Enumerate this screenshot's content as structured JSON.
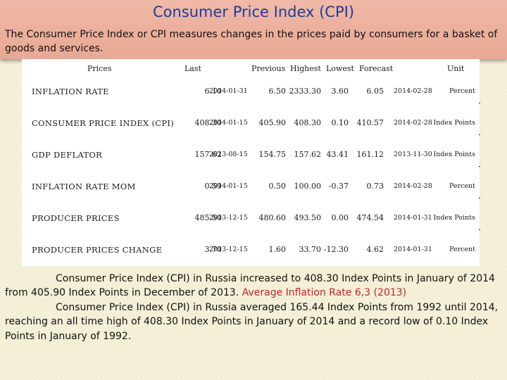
{
  "header": {
    "title": "Consumer Price Index (CPI)",
    "subtitle": "The Consumer Price Index or CPI measures changes in the prices paid by consumers for a basket of goods and services."
  },
  "table": {
    "columns": {
      "prices": "Prices",
      "last": "Last",
      "previous": "Previous",
      "highest": "Highest",
      "lowest": "Lowest",
      "forecast": "Forecast",
      "unit": "Unit"
    },
    "rows": [
      {
        "name": "INFLATION RATE",
        "last": "6.10",
        "ref": "2014-01-31",
        "previous": "6.50",
        "highest": "2333.30",
        "lowest": "3.60",
        "forecast": "6.05",
        "forecast_date": "2014-02-28",
        "unit": "Percent"
      },
      {
        "name": "CONSUMER PRICE INDEX (CPI)",
        "last": "408.30",
        "ref": "2014-01-15",
        "previous": "405.90",
        "highest": "408.30",
        "lowest": "0.10",
        "forecast": "410.57",
        "forecast_date": "2014-02-28",
        "unit": "Index Points"
      },
      {
        "name": "GDP DEFLATOR",
        "last": "157.62",
        "ref": "2013-08-15",
        "previous": "154.75",
        "highest": "157.62",
        "lowest": "43.41",
        "forecast": "161.12",
        "forecast_date": "2013-11-30",
        "unit": "Index Points"
      },
      {
        "name": "INFLATION RATE MOM",
        "last": "0.59",
        "ref": "2014-01-15",
        "previous": "0.50",
        "highest": "100.00",
        "lowest": "-0.37",
        "forecast": "0.73",
        "forecast_date": "2014-02-28",
        "unit": "Percent"
      },
      {
        "name": "PRODUCER PRICES",
        "last": "485.50",
        "ref": "2013-12-15",
        "previous": "480.60",
        "highest": "493.50",
        "lowest": "0.00",
        "forecast": "474.54",
        "forecast_date": "2014-01-31",
        "unit": "Index Points"
      },
      {
        "name": "PRODUCER PRICES CHANGE",
        "last": "3.70",
        "ref": "2013-12-15",
        "previous": "1.60",
        "highest": "33.70",
        "lowest": "-12.30",
        "forecast": "4.62",
        "forecast_date": "2014-01-31",
        "unit": "Percent"
      }
    ]
  },
  "body": {
    "para1": "Consumer Price Index (CPI) in Russia increased to 408.30 Index Points in January of 2014 from 405.90 Index Points in December of 2013.",
    "para1_highlight": "Average Inflation Rate 6,3 (2013)",
    "para2": "Consumer Price Index (CPI) in Russia averaged 165.44 Index Points from 1992 until 2014, reaching an all time high of 408.30 Index Points in January of 2014 and a record low of 0.10 Index Points in January of 1992."
  },
  "colors": {
    "title": "#1a3d9c",
    "header_bg": "#e8a893",
    "highlight": "#c0282d"
  }
}
